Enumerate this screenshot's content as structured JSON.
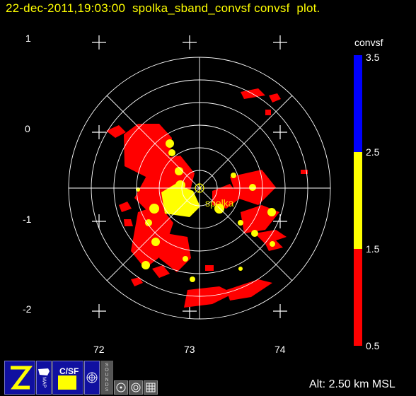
{
  "header": {
    "title": "22-dec-2011,19:03:00  spolka_sband_convsf convsf  plot."
  },
  "axes": {
    "y_ticks": [
      "1",
      "0",
      "-1",
      "-2"
    ],
    "x_ticks": [
      "72",
      "73",
      "74"
    ]
  },
  "radar": {
    "site_label": "spolka"
  },
  "colorbar": {
    "title": "convsf",
    "ticks": [
      "3.5",
      "2.5",
      "1.5",
      "0.5"
    ],
    "colors": [
      "#0000ff",
      "#ffff00",
      "#ff0000"
    ]
  },
  "footer": {
    "altitude": "Alt: 2.50 km MSL"
  },
  "toolbar": {
    "buttons": [
      {
        "name": "zoom-button",
        "icon": "z-logo-icon"
      },
      {
        "name": "map-button",
        "icon": "us-map-icon",
        "label": "MAP"
      },
      {
        "name": "csf-button",
        "icon": "csf-icon",
        "label": "C/SF"
      },
      {
        "name": "ring-button",
        "icon": "ring-icon"
      },
      {
        "name": "sounds-button",
        "label": "SOUNDS"
      },
      {
        "name": "target-button",
        "icon": "target-icon"
      },
      {
        "name": "circle-button",
        "icon": "circle-icon"
      },
      {
        "name": "grid-button",
        "icon": "grid-icon"
      }
    ]
  }
}
